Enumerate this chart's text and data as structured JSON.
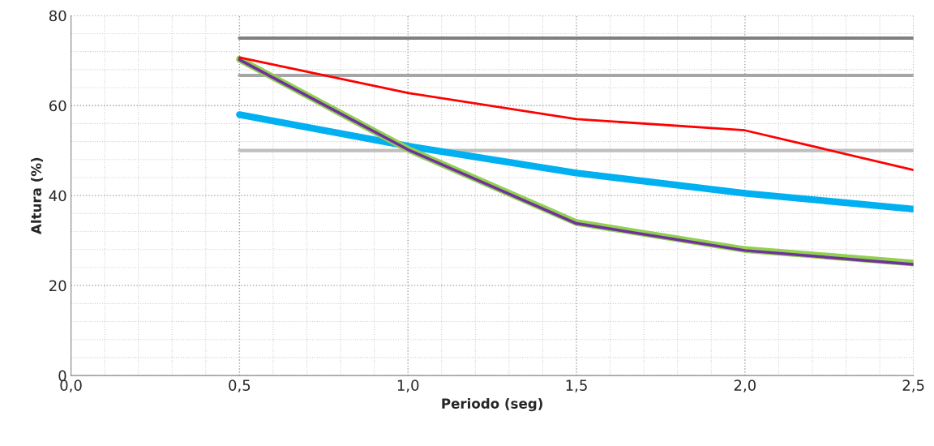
{
  "chart_data": {
    "type": "line",
    "xlabel": "Periodo (seg)",
    "ylabel": "Altura (%)",
    "x": [
      0.5,
      1.0,
      1.5,
      2.0,
      2.5
    ],
    "series": [
      {
        "color": "#808080",
        "values": [
          75,
          75,
          75,
          75,
          75
        ]
      },
      {
        "color": "#a6a6a6",
        "values": [
          66.7,
          66.7,
          66.7,
          66.7,
          66.7
        ]
      },
      {
        "color": "#bfbfbf",
        "values": [
          50,
          50,
          50,
          50,
          50
        ]
      },
      {
        "color": "#00b0f0",
        "values": [
          58,
          51,
          45,
          40.5,
          37
        ]
      },
      {
        "color": "#92d050",
        "values": [
          70.3,
          50.3,
          34,
          28,
          25
        ]
      },
      {
        "color": "#7030a0",
        "values": [
          70.2,
          50.2,
          33.8,
          27.8,
          24.7
        ]
      },
      {
        "color": "#ff0000",
        "values": [
          70.7,
          62.8,
          57,
          54.5,
          45.7
        ]
      }
    ],
    "xlim": [
      0,
      2.5
    ],
    "ylim": [
      0,
      80
    ],
    "xticks": [
      {
        "value": 0,
        "label": "0,0"
      },
      {
        "value": 0.5,
        "label": "0,5"
      },
      {
        "value": 1.0,
        "label": "1,0"
      },
      {
        "value": 1.5,
        "label": "1,5"
      },
      {
        "value": 2.0,
        "label": "2,0"
      },
      {
        "value": 2.5,
        "label": "2,5"
      }
    ],
    "yticks": [
      0,
      20,
      40,
      60,
      80
    ],
    "grid": true,
    "marker": "none",
    "line_style": "solid"
  }
}
